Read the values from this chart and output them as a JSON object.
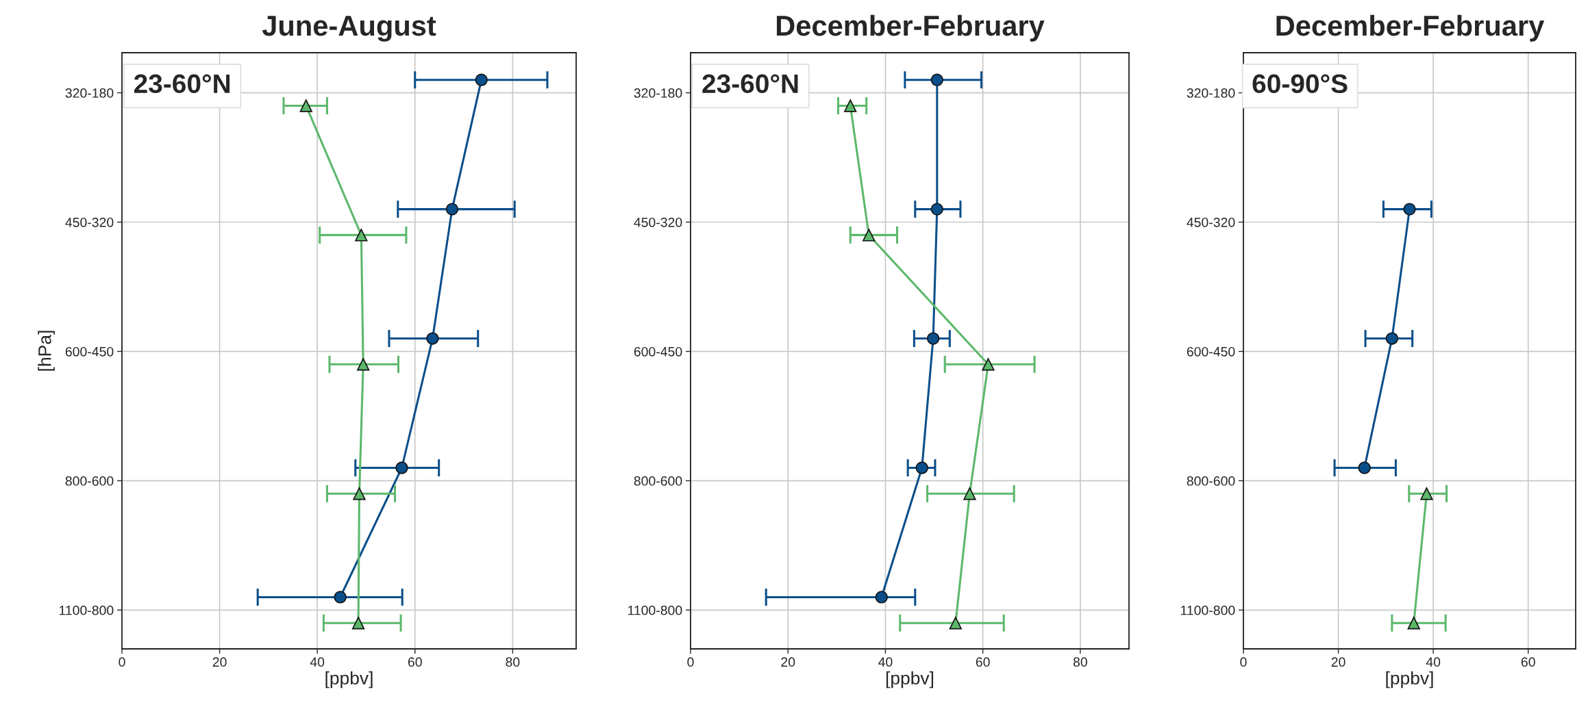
{
  "chart_data": [
    {
      "type": "line",
      "orientation": "horizontal",
      "title": "June-August",
      "xlabel": "[ppbv]",
      "ylabel": "[hPa]",
      "annotations": [
        "23-60°N"
      ],
      "categories": [
        "320-180",
        "450-320",
        "600-450",
        "800-600",
        "1100-800"
      ],
      "xlim": [
        0,
        93
      ],
      "xticks": [
        0,
        20,
        40,
        60,
        80
      ],
      "grid": true,
      "series": [
        {
          "color": "#0b4f8a",
          "marker": "circle",
          "values": [
            73.6,
            67.6,
            63.6,
            57.3,
            44.7
          ],
          "errors": [
            [
              60,
              87.1
            ],
            [
              56.5,
              80.4
            ],
            [
              54.7,
              72.9
            ],
            [
              47.8,
              64.9
            ],
            [
              27.8,
              57.4
            ]
          ]
        },
        {
          "color": "#5cb86a",
          "marker": "triangle",
          "values": [
            37.7,
            49.0,
            49.4,
            48.6,
            48.4
          ],
          "errors": [
            [
              33.1,
              42.0
            ],
            [
              40.5,
              58.2
            ],
            [
              42.5,
              56.6
            ],
            [
              42.0,
              55.9
            ],
            [
              41.3,
              57.1
            ]
          ]
        }
      ]
    },
    {
      "type": "line",
      "orientation": "horizontal",
      "title": "December-February",
      "xlabel": "[ppbv]",
      "annotations": [
        "23-60°N"
      ],
      "categories": [
        "320-180",
        "450-320",
        "600-450",
        "800-600",
        "1100-800"
      ],
      "xlim": [
        0,
        90
      ],
      "xticks": [
        0,
        20,
        40,
        60,
        80
      ],
      "grid": true,
      "series": [
        {
          "color": "#0b4f8a",
          "marker": "circle",
          "values": [
            50.6,
            50.6,
            49.8,
            47.5,
            39.2
          ],
          "errors": [
            [
              44.0,
              59.7
            ],
            [
              46.1,
              55.4
            ],
            [
              45.9,
              53.2
            ],
            [
              44.6,
              50.2
            ],
            [
              15.5,
              46.1
            ]
          ]
        },
        {
          "color": "#5cb86a",
          "marker": "triangle",
          "values": [
            32.8,
            36.6,
            61.1,
            57.3,
            54.4
          ],
          "errors": [
            [
              30.3,
              36.1
            ],
            [
              32.8,
              42.4
            ],
            [
              52.2,
              70.6
            ],
            [
              48.6,
              66.4
            ],
            [
              43.0,
              64.3
            ]
          ]
        }
      ]
    },
    {
      "type": "line",
      "orientation": "horizontal",
      "title": "December-February",
      "xlabel": "[ppbv]",
      "annotations": [
        "60-90°S"
      ],
      "categories": [
        "320-180",
        "450-320",
        "600-450",
        "800-600",
        "1100-800"
      ],
      "xlim": [
        0,
        70
      ],
      "xticks": [
        0,
        20,
        40,
        60
      ],
      "grid": true,
      "series": [
        {
          "color": "#0b4f8a",
          "marker": "circle",
          "values": [
            null,
            35.0,
            31.3,
            25.5,
            null
          ],
          "errors": [
            null,
            [
              29.5,
              39.6
            ],
            [
              25.7,
              35.6
            ],
            [
              19.2,
              32.1
            ],
            null
          ]
        },
        {
          "color": "#5cb86a",
          "marker": "triangle",
          "values": [
            null,
            null,
            null,
            38.6,
            35.9
          ],
          "errors": [
            null,
            null,
            null,
            [
              34.9,
              42.8
            ],
            [
              31.3,
              42.6
            ]
          ]
        }
      ]
    }
  ]
}
